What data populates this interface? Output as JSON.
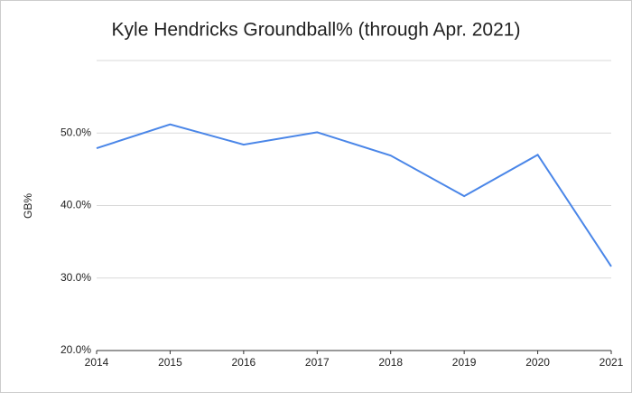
{
  "chart_data": {
    "type": "line",
    "title": "Kyle Hendricks Groundball% (through Apr. 2021)",
    "y_label": "GB%",
    "x": [
      2014,
      2015,
      2016,
      2017,
      2018,
      2019,
      2020,
      2021
    ],
    "series": [
      {
        "name": "GB%",
        "color": "#4a86e8",
        "values": [
          47.9,
          51.2,
          48.4,
          50.1,
          46.9,
          41.3,
          47.0,
          31.6
        ]
      }
    ],
    "xlim": [
      2014,
      2021
    ],
    "xticks": [
      2014,
      2015,
      2016,
      2017,
      2018,
      2019,
      2020,
      2021
    ],
    "ylim": [
      20,
      60
    ],
    "yticks": [
      {
        "value": 20,
        "label": "20.0%"
      },
      {
        "value": 30,
        "label": "30.0%"
      },
      {
        "value": 40,
        "label": "40.0%"
      },
      {
        "value": 50,
        "label": "50.0%"
      }
    ],
    "grid": true
  }
}
